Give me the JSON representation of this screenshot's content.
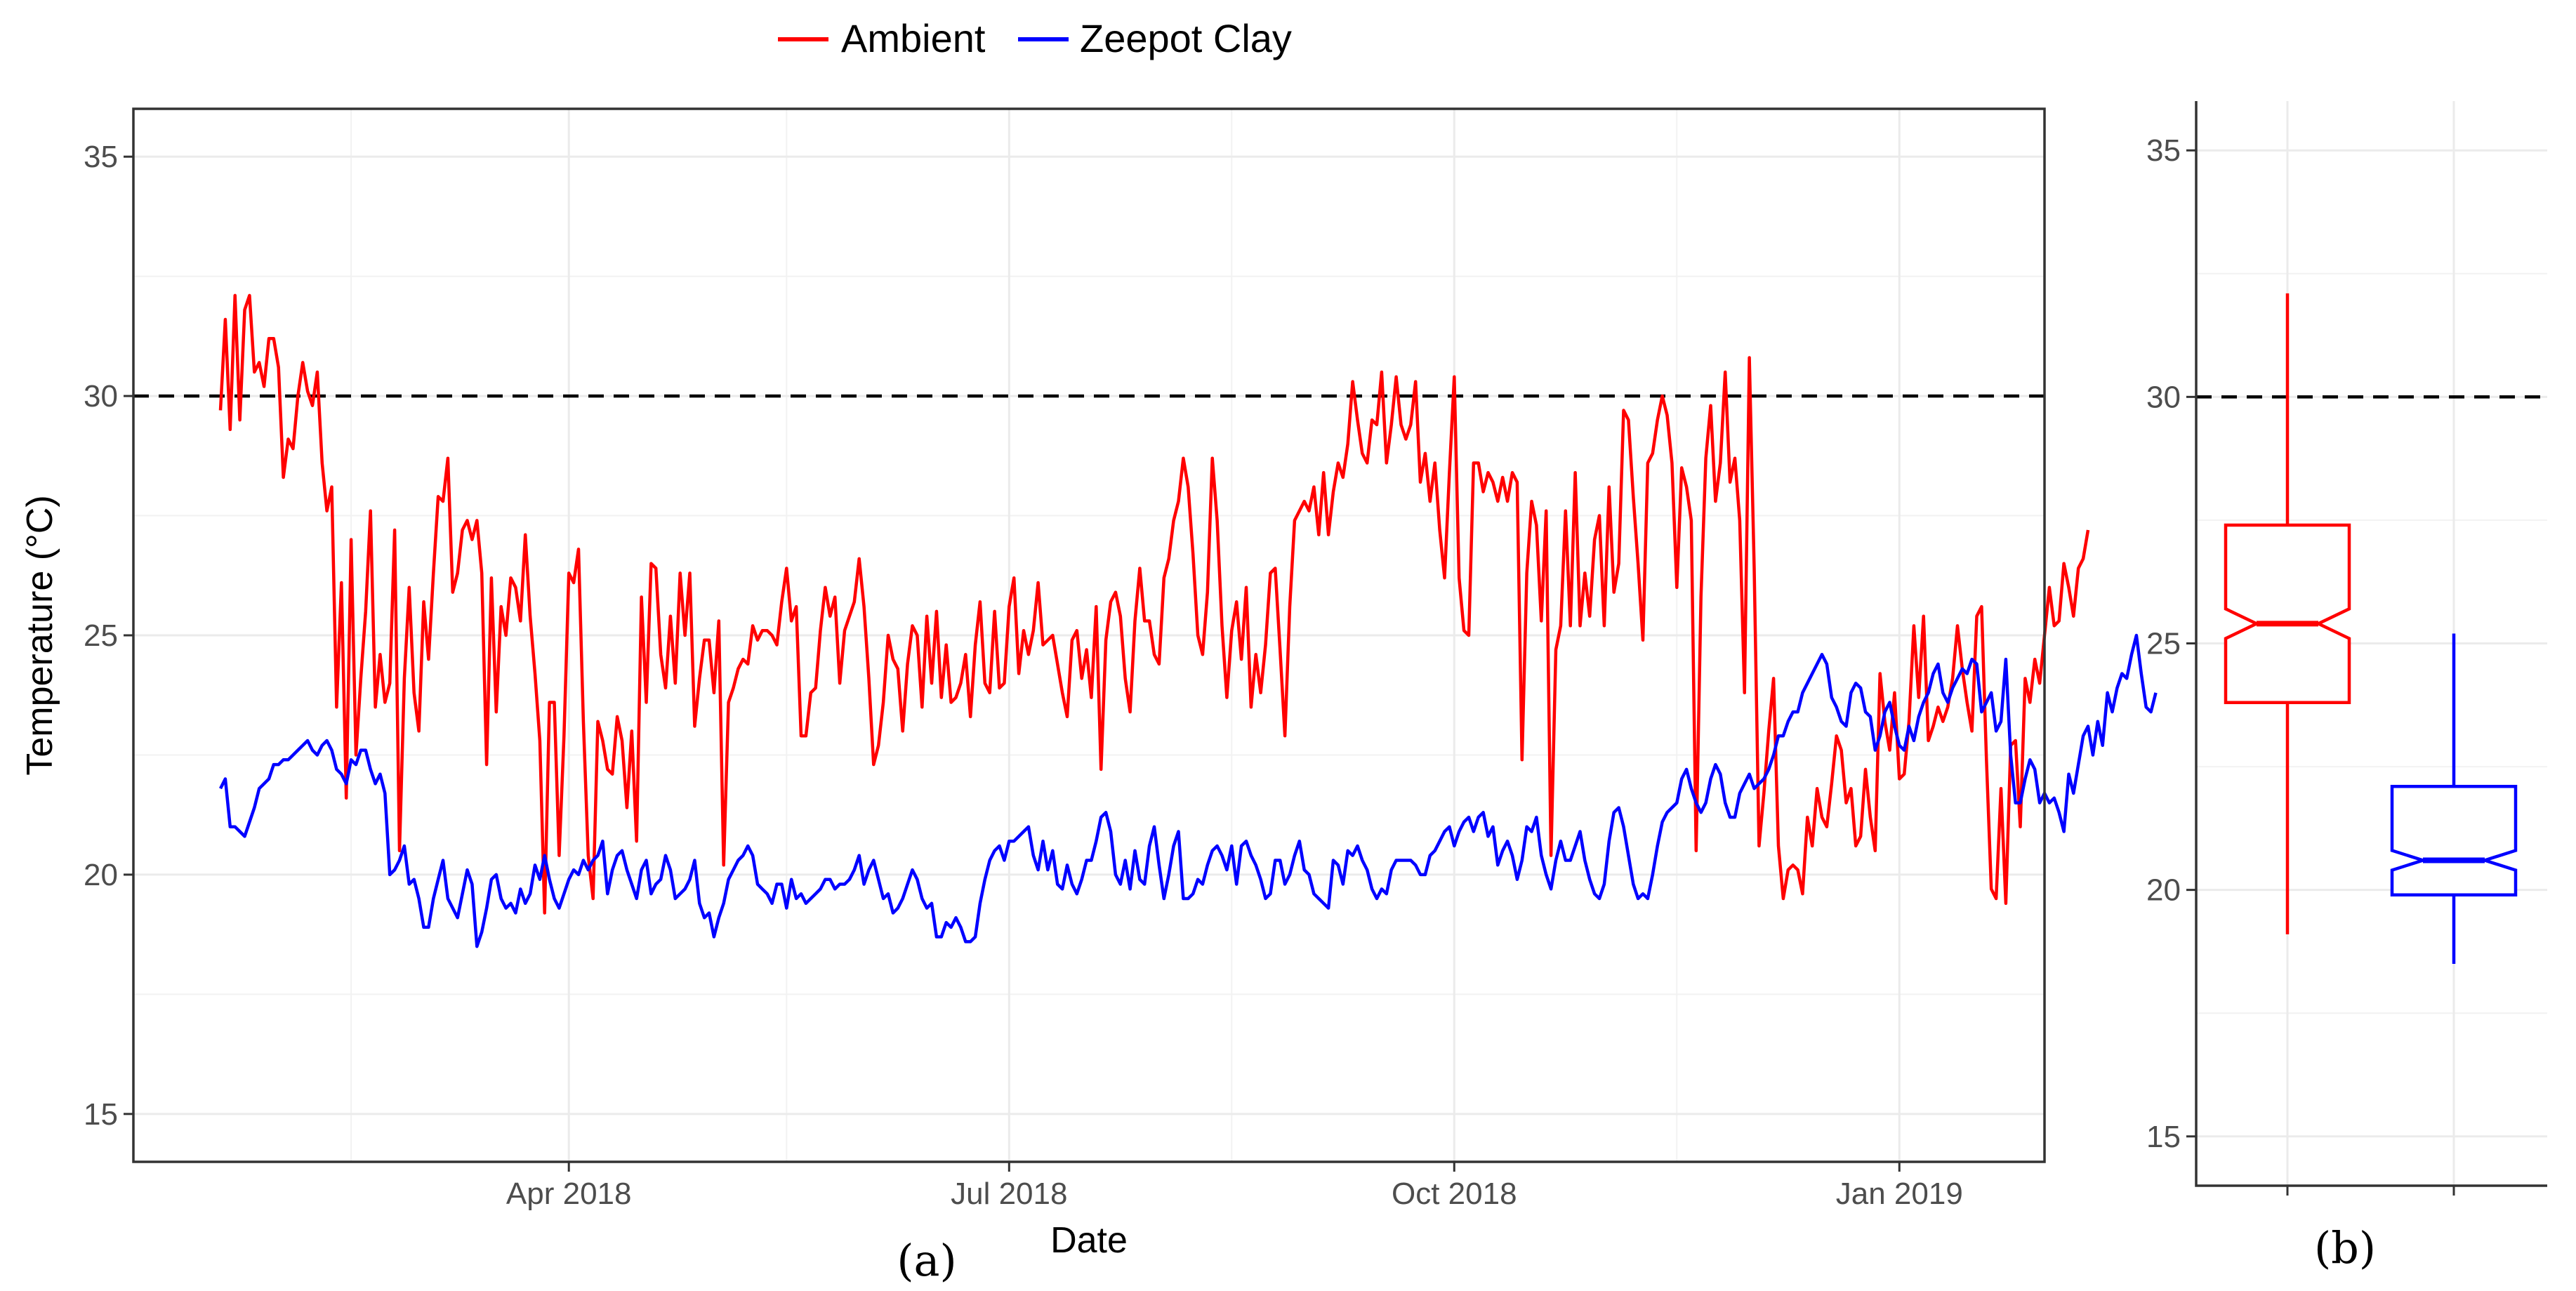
{
  "legend": {
    "entries": [
      {
        "label": "Ambient",
        "color": "#ff0000"
      },
      {
        "label": "Zeepot Clay",
        "color": "#0000ff"
      }
    ],
    "position": "top"
  },
  "panel_labels": {
    "a": "(a)",
    "b": "(b)"
  },
  "chart_data": [
    {
      "type": "line",
      "panel": "(a)",
      "xlabel": "Date",
      "ylabel": "Temperature (°C)",
      "x_range_days": [
        0,
        395
      ],
      "x_axis_origin": "2018-01-01",
      "x_ticks": [
        {
          "label": "Apr 2018",
          "day": 90
        },
        {
          "label": "Jul 2018",
          "day": 181
        },
        {
          "label": "Oct 2018",
          "day": 273
        },
        {
          "label": "Jan 2019",
          "day": 365
        }
      ],
      "x_minor_days": [
        45,
        135,
        227,
        319,
        411
      ],
      "ylim": [
        14,
        36
      ],
      "y_ticks": [
        15,
        20,
        25,
        30,
        35
      ],
      "grid": true,
      "reference_line": {
        "y": 30,
        "style": "dashed"
      },
      "series": [
        {
          "name": "Ambient",
          "color": "#ff0000",
          "start_day": 18,
          "step_days": 1,
          "values": [
            29.7,
            31.6,
            29.3,
            32.1,
            29.5,
            31.8,
            32.1,
            30.5,
            30.7,
            30.2,
            31.2,
            31.2,
            30.6,
            28.3,
            29.1,
            28.9,
            30.0,
            30.7,
            30.1,
            29.8,
            30.5,
            28.6,
            27.6,
            28.1,
            23.5,
            26.1,
            21.6,
            27.0,
            22.5,
            24.1,
            25.5,
            27.6,
            23.5,
            24.6,
            23.6,
            24.0,
            27.2,
            20.5,
            24.1,
            26.0,
            23.8,
            23.0,
            25.7,
            24.5,
            26.3,
            27.9,
            27.8,
            28.7,
            25.9,
            26.3,
            27.2,
            27.4,
            27.0,
            27.4,
            26.3,
            22.3,
            26.2,
            23.4,
            25.6,
            25.0,
            26.2,
            26.0,
            25.3,
            27.1,
            25.4,
            24.2,
            22.8,
            19.2,
            23.6,
            23.6,
            20.4,
            22.9,
            26.3,
            26.1,
            26.8,
            23.2,
            20.4,
            19.5,
            23.2,
            22.8,
            22.2,
            22.1,
            23.3,
            22.8,
            21.4,
            23.0,
            20.7,
            25.8,
            23.6,
            26.5,
            26.4,
            24.6,
            23.9,
            25.4,
            24.0,
            26.3,
            25.0,
            26.3,
            23.1,
            24.1,
            24.9,
            24.9,
            23.8,
            25.3,
            20.2,
            23.6,
            23.9,
            24.3,
            24.5,
            24.4,
            25.2,
            24.9,
            25.1,
            25.1,
            25.0,
            24.8,
            25.7,
            26.4,
            25.3,
            25.6,
            22.9,
            22.9,
            23.8,
            23.9,
            25.1,
            26.0,
            25.4,
            25.8,
            24.0,
            25.1,
            25.4,
            25.7,
            26.6,
            25.6,
            24.1,
            22.3,
            22.7,
            23.6,
            25.0,
            24.5,
            24.3,
            23.0,
            24.4,
            25.2,
            25.0,
            23.5,
            25.4,
            24.0,
            25.5,
            23.7,
            24.8,
            23.6,
            23.7,
            24.0,
            24.6,
            23.3,
            24.8,
            25.7,
            24.0,
            23.8,
            25.5,
            23.9,
            24.0,
            25.6,
            26.2,
            24.2,
            25.1,
            24.6,
            25.1,
            26.1,
            24.8,
            24.9,
            25.0,
            24.4,
            23.8,
            23.3,
            24.9,
            25.1,
            24.1,
            24.7,
            23.7,
            25.6,
            22.2,
            24.9,
            25.7,
            25.9,
            25.4,
            24.1,
            23.4,
            25.3,
            26.4,
            25.3,
            25.3,
            24.6,
            24.4,
            26.2,
            26.6,
            27.4,
            27.8,
            28.7,
            28.1,
            26.7,
            25.0,
            24.6,
            25.9,
            28.7,
            27.4,
            25.2,
            23.7,
            25.1,
            25.7,
            24.5,
            26.0,
            23.5,
            24.6,
            23.8,
            24.8,
            26.3,
            26.4,
            24.7,
            22.9,
            25.6,
            27.4,
            27.6,
            27.8,
            27.6,
            28.1,
            27.1,
            28.4,
            27.1,
            28.0,
            28.6,
            28.3,
            29.0,
            30.3,
            29.5,
            28.8,
            28.6,
            29.5,
            29.4,
            30.5,
            28.6,
            29.4,
            30.4,
            29.4,
            29.1,
            29.4,
            30.3,
            28.2,
            28.8,
            27.8,
            28.6,
            27.2,
            26.2,
            28.4,
            30.4,
            26.2,
            25.1,
            25.0,
            28.6,
            28.6,
            28.0,
            28.4,
            28.2,
            27.8,
            28.3,
            27.8,
            28.4,
            28.2,
            22.4,
            26.3,
            27.8,
            27.3,
            25.3,
            27.6,
            20.4,
            24.7,
            25.2,
            27.6,
            25.2,
            28.4,
            25.2,
            26.3,
            25.4,
            27.0,
            27.5,
            25.2,
            28.1,
            25.9,
            26.5,
            29.7,
            29.5,
            27.9,
            26.5,
            24.9,
            28.6,
            28.8,
            29.5,
            30.0,
            29.6,
            28.6,
            26.0,
            28.5,
            28.1,
            27.4,
            20.5,
            25.8,
            28.7,
            29.8,
            27.8,
            28.6,
            30.5,
            28.2,
            28.7,
            27.4,
            23.8,
            30.8,
            26.4,
            20.6,
            21.7,
            23.0,
            24.1,
            20.6,
            19.5,
            20.1,
            20.2,
            20.1,
            19.6,
            21.2,
            20.6,
            21.8,
            21.2,
            21.0,
            21.9,
            22.9,
            22.6,
            21.5,
            21.8,
            20.6,
            20.8,
            22.2,
            21.2,
            20.5,
            24.2,
            23.2,
            22.6,
            23.8,
            22.0,
            22.1,
            23.2,
            25.2,
            23.7,
            25.4,
            22.8,
            23.1,
            23.5,
            23.2,
            23.5,
            24.1,
            25.2,
            24.3,
            23.6,
            23.0,
            25.4,
            25.6,
            22.4,
            19.7,
            19.5,
            21.8,
            19.4,
            22.7,
            22.8,
            21.0,
            24.1,
            23.6,
            24.5,
            24.0,
            25.0,
            26.0,
            25.2,
            25.3,
            26.5,
            26.0,
            25.4,
            26.4,
            26.6,
            27.2
          ]
        },
        {
          "name": "Zeepot Clay",
          "color": "#0000ff",
          "start_day": 18,
          "step_days": 1,
          "values": [
            21.8,
            22.0,
            21.0,
            21.0,
            20.9,
            20.8,
            21.1,
            21.4,
            21.8,
            21.9,
            22.0,
            22.3,
            22.3,
            22.4,
            22.4,
            22.5,
            22.6,
            22.7,
            22.8,
            22.6,
            22.5,
            22.7,
            22.8,
            22.6,
            22.2,
            22.1,
            21.9,
            22.4,
            22.3,
            22.6,
            22.6,
            22.2,
            21.9,
            22.1,
            21.7,
            20.0,
            20.1,
            20.3,
            20.6,
            19.8,
            19.9,
            19.5,
            18.9,
            18.9,
            19.5,
            19.9,
            20.3,
            19.5,
            19.3,
            19.1,
            19.6,
            20.1,
            19.8,
            18.5,
            18.8,
            19.3,
            19.9,
            20.0,
            19.5,
            19.3,
            19.4,
            19.2,
            19.7,
            19.4,
            19.6,
            20.2,
            19.9,
            20.4,
            19.9,
            19.5,
            19.3,
            19.6,
            19.9,
            20.1,
            20.0,
            20.3,
            20.1,
            20.3,
            20.4,
            20.7,
            19.6,
            20.1,
            20.4,
            20.5,
            20.1,
            19.8,
            19.5,
            20.1,
            20.3,
            19.6,
            19.8,
            19.9,
            20.4,
            20.1,
            19.5,
            19.6,
            19.7,
            19.9,
            20.3,
            19.4,
            19.1,
            19.2,
            18.7,
            19.1,
            19.4,
            19.9,
            20.1,
            20.3,
            20.4,
            20.6,
            20.4,
            19.8,
            19.7,
            19.6,
            19.4,
            19.8,
            19.8,
            19.3,
            19.9,
            19.5,
            19.6,
            19.4,
            19.5,
            19.6,
            19.7,
            19.9,
            19.9,
            19.7,
            19.8,
            19.8,
            19.9,
            20.1,
            20.4,
            19.8,
            20.1,
            20.3,
            19.9,
            19.5,
            19.6,
            19.2,
            19.3,
            19.5,
            19.8,
            20.1,
            19.9,
            19.5,
            19.3,
            19.4,
            18.7,
            18.7,
            19.0,
            18.9,
            19.1,
            18.9,
            18.6,
            18.6,
            18.7,
            19.4,
            19.9,
            20.3,
            20.5,
            20.6,
            20.3,
            20.7,
            20.7,
            20.8,
            20.9,
            21.0,
            20.4,
            20.1,
            20.7,
            20.1,
            20.5,
            19.8,
            19.7,
            20.2,
            19.8,
            19.6,
            19.9,
            20.3,
            20.3,
            20.7,
            21.2,
            21.3,
            20.9,
            20.0,
            19.8,
            20.3,
            19.7,
            20.5,
            19.9,
            19.8,
            20.6,
            21.0,
            20.2,
            19.5,
            20.0,
            20.6,
            20.9,
            19.5,
            19.5,
            19.6,
            19.9,
            19.8,
            20.2,
            20.5,
            20.6,
            20.4,
            20.1,
            20.6,
            19.8,
            20.6,
            20.7,
            20.4,
            20.2,
            19.9,
            19.5,
            19.6,
            20.3,
            20.3,
            19.8,
            20.0,
            20.4,
            20.7,
            20.1,
            20.0,
            19.6,
            19.5,
            19.4,
            19.3,
            20.3,
            20.2,
            19.8,
            20.5,
            20.4,
            20.6,
            20.3,
            20.1,
            19.7,
            19.5,
            19.7,
            19.6,
            20.1,
            20.3,
            20.3,
            20.3,
            20.3,
            20.2,
            20.0,
            20.0,
            20.4,
            20.5,
            20.7,
            20.9,
            21.0,
            20.6,
            20.9,
            21.1,
            21.2,
            20.9,
            21.2,
            21.3,
            20.8,
            21.0,
            20.2,
            20.5,
            20.7,
            20.4,
            19.9,
            20.3,
            21.0,
            20.9,
            21.2,
            20.4,
            20.0,
            19.7,
            20.3,
            20.7,
            20.3,
            20.3,
            20.6,
            20.9,
            20.3,
            19.9,
            19.6,
            19.5,
            19.8,
            20.7,
            21.3,
            21.4,
            21.0,
            20.4,
            19.8,
            19.5,
            19.6,
            19.5,
            20.0,
            20.6,
            21.1,
            21.3,
            21.4,
            21.5,
            22.0,
            22.2,
            21.8,
            21.5,
            21.3,
            21.5,
            22.0,
            22.3,
            22.1,
            21.5,
            21.2,
            21.2,
            21.7,
            21.9,
            22.1,
            21.8,
            21.9,
            22.0,
            22.2,
            22.5,
            22.9,
            22.9,
            23.2,
            23.4,
            23.4,
            23.8,
            24.0,
            24.2,
            24.4,
            24.6,
            24.4,
            23.7,
            23.5,
            23.2,
            23.1,
            23.8,
            24.0,
            23.9,
            23.4,
            23.3,
            22.6,
            22.9,
            23.4,
            23.6,
            23.1,
            22.7,
            22.6,
            23.1,
            22.8,
            23.3,
            23.6,
            23.8,
            24.2,
            24.4,
            23.8,
            23.6,
            23.9,
            24.1,
            24.3,
            24.2,
            24.5,
            24.4,
            23.4,
            23.6,
            23.8,
            23.0,
            23.2,
            24.5,
            22.5,
            21.5,
            21.5,
            22.0,
            22.4,
            22.2,
            21.5,
            21.7,
            21.5,
            21.6,
            21.3,
            20.9,
            22.1,
            21.7,
            22.3,
            22.9,
            23.1,
            22.5,
            23.2,
            22.7,
            23.8,
            23.4,
            23.9,
            24.2,
            24.1,
            24.6,
            25.0,
            24.2,
            23.5,
            23.4,
            23.8
          ]
        }
      ]
    },
    {
      "type": "box",
      "panel": "(b)",
      "xlabel": "",
      "ylabel": "",
      "ylim": [
        14,
        36
      ],
      "y_ticks": [
        15,
        20,
        25,
        30,
        35
      ],
      "notched": true,
      "reference_line": {
        "y": 30,
        "style": "dashed"
      },
      "boxes": [
        {
          "name": "Ambient",
          "color": "#ff0000",
          "min": 19.1,
          "q1": 23.8,
          "median": 25.4,
          "q3": 27.4,
          "max": 32.1,
          "notch_low": 25.1,
          "notch_high": 25.7
        },
        {
          "name": "Zeepot Clay",
          "color": "#0000ff",
          "min": 18.5,
          "q1": 19.9,
          "median": 20.6,
          "q3": 22.1,
          "max": 25.2,
          "notch_low": 20.4,
          "notch_high": 20.8
        }
      ]
    }
  ]
}
